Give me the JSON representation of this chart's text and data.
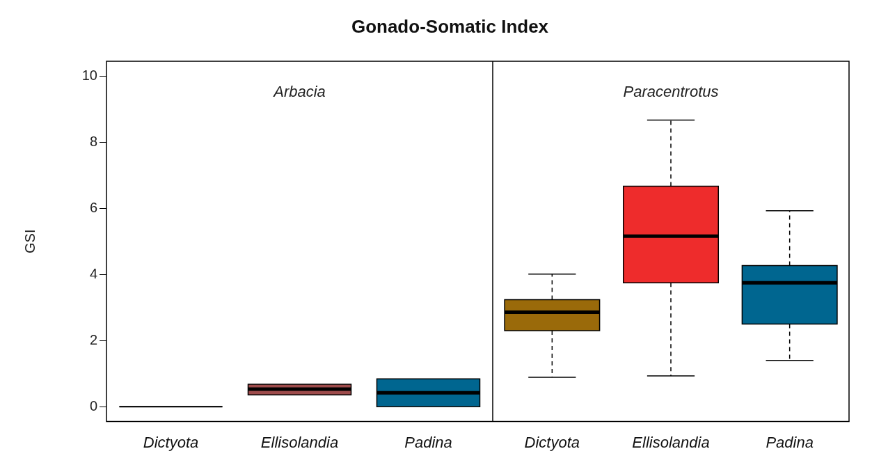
{
  "chart_data": [
    {
      "type": "box",
      "title": "Gonado-Somatic Index",
      "ylabel": "GSI",
      "annotations": [
        "Arbacia"
      ],
      "categories": [
        "Dictyota",
        "Ellisolandia",
        "Padina"
      ],
      "colors": [
        "#000000",
        "#9e4b4b",
        "#006690"
      ],
      "ylim": [
        -0.45,
        10.45
      ],
      "yticks": [
        0,
        2,
        4,
        6,
        8,
        10
      ],
      "grid": false,
      "legend": false,
      "boxes": [
        {
          "low": 0,
          "q1": 0,
          "median": 0,
          "q3": 0,
          "high": 0
        },
        {
          "low": 0.36,
          "q1": 0.36,
          "median": 0.53,
          "q3": 0.68,
          "high": 0.68
        },
        {
          "low": 0,
          "q1": 0,
          "median": 0.42,
          "q3": 0.84,
          "high": 0.84
        }
      ]
    },
    {
      "type": "box",
      "annotations": [
        "Paracentrotus"
      ],
      "categories": [
        "Dictyota",
        "Ellisolandia",
        "Padina"
      ],
      "colors": [
        "#9a6a0a",
        "#ee2c2c",
        "#006690"
      ],
      "ylim": [
        -0.45,
        10.45
      ],
      "yticks": [
        0,
        2,
        4,
        6,
        8,
        10
      ],
      "tick_labels": "x",
      "grid": false,
      "legend": false,
      "boxes": [
        {
          "low": 0.89,
          "q1": 2.3,
          "median": 2.86,
          "q3": 3.24,
          "high": 4.01
        },
        {
          "low": 0.93,
          "q1": 3.75,
          "median": 5.16,
          "q3": 6.67,
          "high": 8.67
        },
        {
          "low": 1.4,
          "q1": 2.5,
          "median": 3.75,
          "q3": 4.27,
          "high": 5.93
        }
      ]
    }
  ]
}
